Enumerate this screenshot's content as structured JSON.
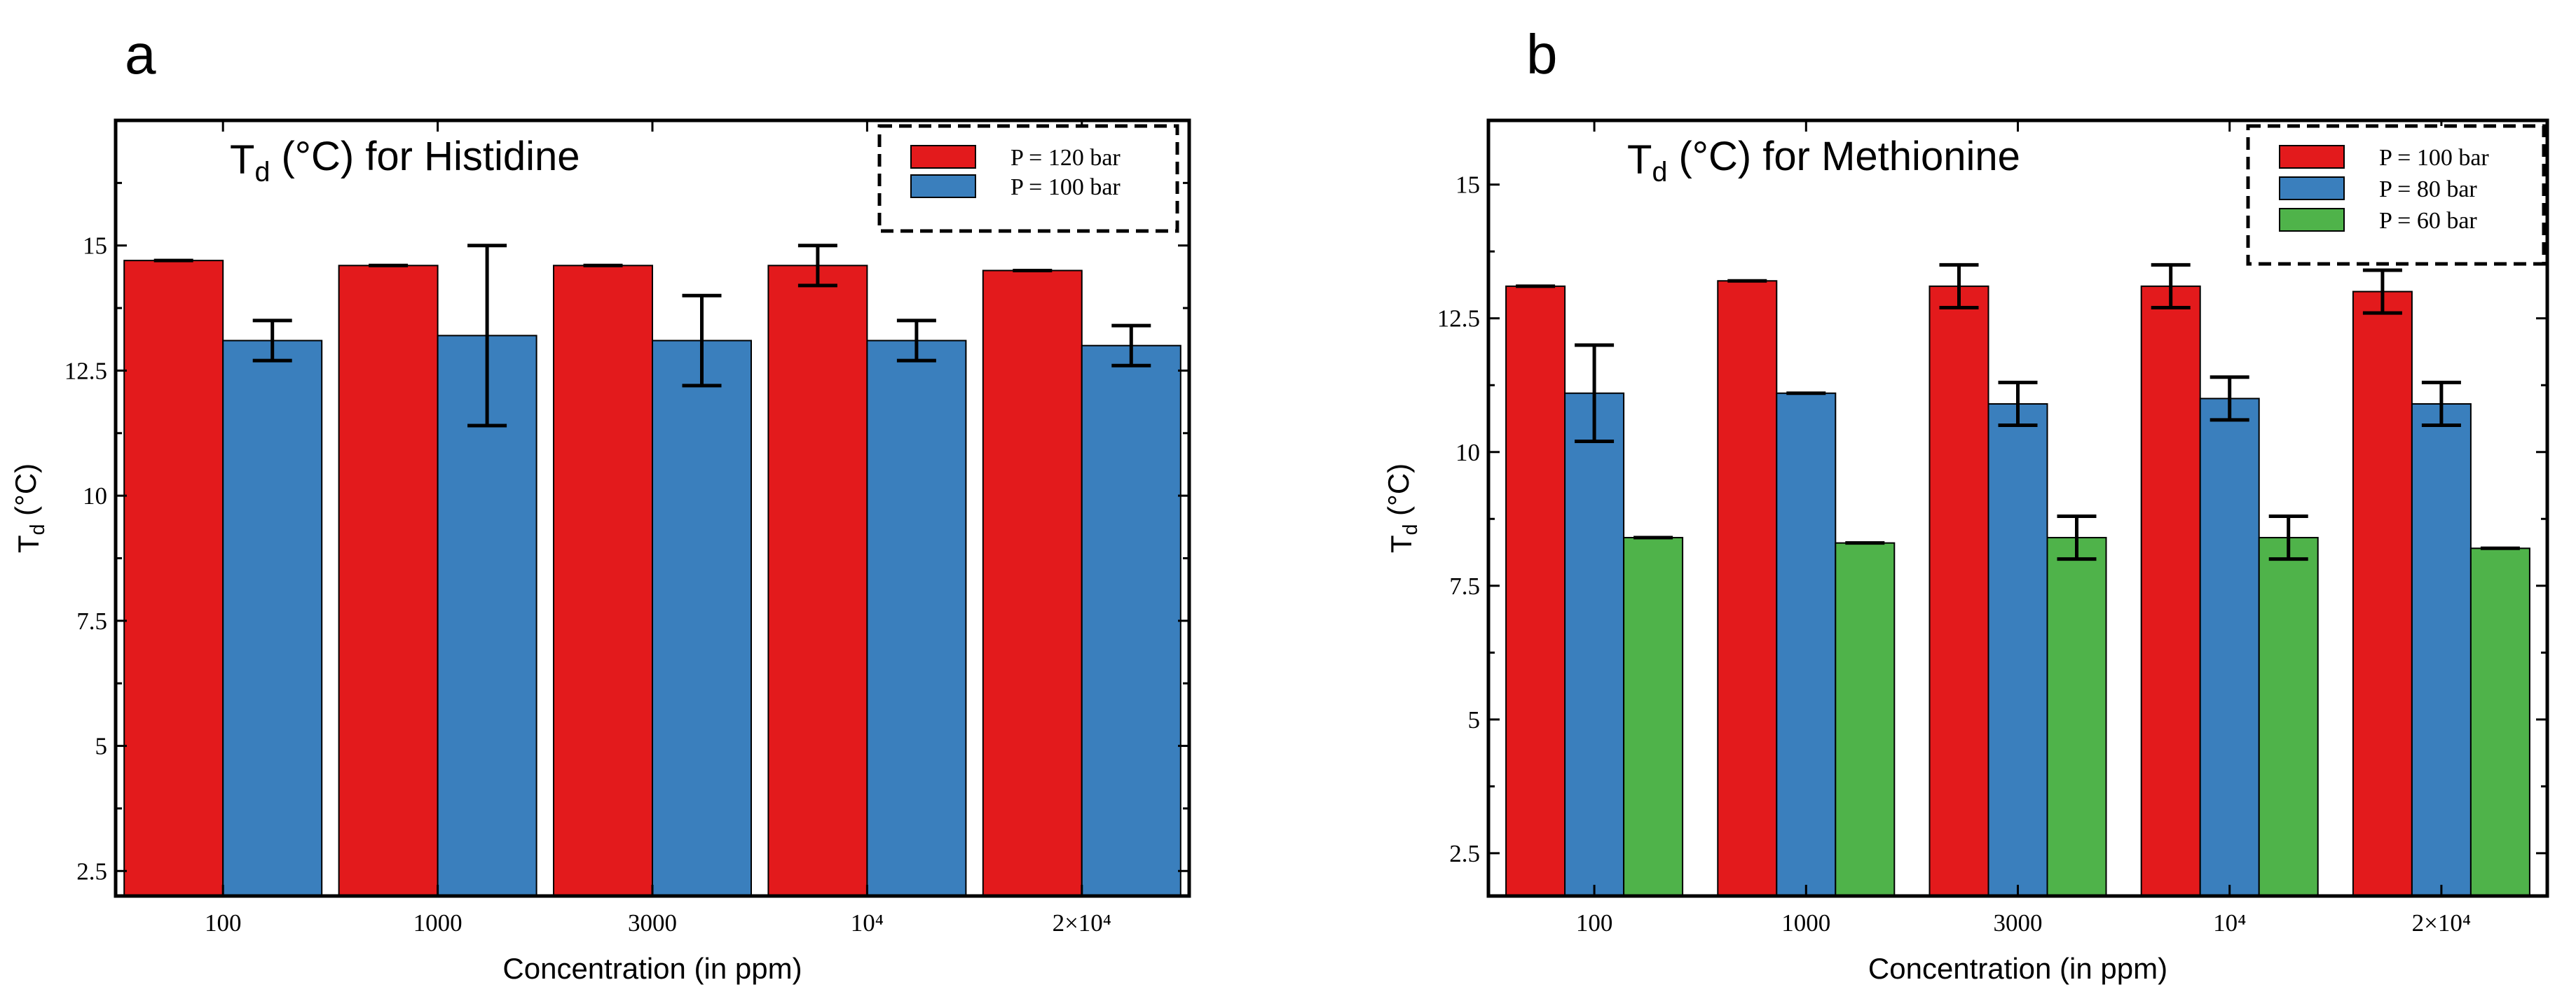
{
  "chart_data": [
    {
      "panel_label": "a",
      "type": "bar",
      "title_main": "T",
      "title_sub": "d",
      "title_rest": " (°C) for Histidine",
      "ylabel_main": "T",
      "ylabel_sub": "d",
      "ylabel_rest": " (°C)",
      "xlabel": "Concentration (in ppm)",
      "categories": [
        "100",
        "1000",
        "3000",
        "10⁴",
        "2×10⁴"
      ],
      "ylim": [
        2,
        17.5
      ],
      "yticks": [
        2.5,
        5,
        7.5,
        10,
        12.5,
        15
      ],
      "ytick_labels": [
        "2.5",
        "5",
        "7.5",
        "10",
        "12.5",
        "15"
      ],
      "series": [
        {
          "name": "P = 120 bar",
          "color": "#e31a1c",
          "values": [
            14.7,
            14.6,
            14.6,
            14.6,
            14.5
          ],
          "errors": [
            0.0,
            0.0,
            0.0,
            0.4,
            0.0
          ]
        },
        {
          "name": "P = 100 bar",
          "color": "#3a7fbd",
          "values": [
            13.1,
            13.2,
            13.1,
            13.1,
            13.0
          ],
          "errors": [
            0.4,
            1.8,
            0.9,
            0.4,
            0.4
          ]
        }
      ],
      "legend_position": "top-right"
    },
    {
      "panel_label": "b",
      "type": "bar",
      "title_main": "T",
      "title_sub": "d",
      "title_rest": " (°C) for Methionine",
      "ylabel_main": "T",
      "ylabel_sub": "d",
      "ylabel_rest": " (°C)",
      "xlabel": "Concentration (in ppm)",
      "categories": [
        "100",
        "1000",
        "3000",
        "10⁴",
        "2×10⁴"
      ],
      "ylim": [
        1.7,
        16.2
      ],
      "yticks": [
        2.5,
        5,
        7.5,
        10,
        12.5,
        15
      ],
      "ytick_labels": [
        "2.5",
        "5",
        "7.5",
        "10",
        "12.5",
        "15"
      ],
      "series": [
        {
          "name": "P = 100 bar",
          "color": "#e31a1c",
          "values": [
            13.1,
            13.2,
            13.1,
            13.1,
            13.0
          ],
          "errors": [
            0.0,
            0.0,
            0.4,
            0.4,
            0.4
          ]
        },
        {
          "name": "P = 80 bar",
          "color": "#3a7fbd",
          "values": [
            11.1,
            11.1,
            10.9,
            11.0,
            10.9
          ],
          "errors": [
            0.9,
            0.0,
            0.4,
            0.4,
            0.4
          ]
        },
        {
          "name": "P = 60 bar",
          "color": "#4fb34a",
          "values": [
            8.4,
            8.3,
            8.4,
            8.4,
            8.2
          ],
          "errors": [
            0.0,
            0.0,
            0.4,
            0.4,
            0.0
          ]
        }
      ],
      "legend_position": "top-right"
    }
  ]
}
